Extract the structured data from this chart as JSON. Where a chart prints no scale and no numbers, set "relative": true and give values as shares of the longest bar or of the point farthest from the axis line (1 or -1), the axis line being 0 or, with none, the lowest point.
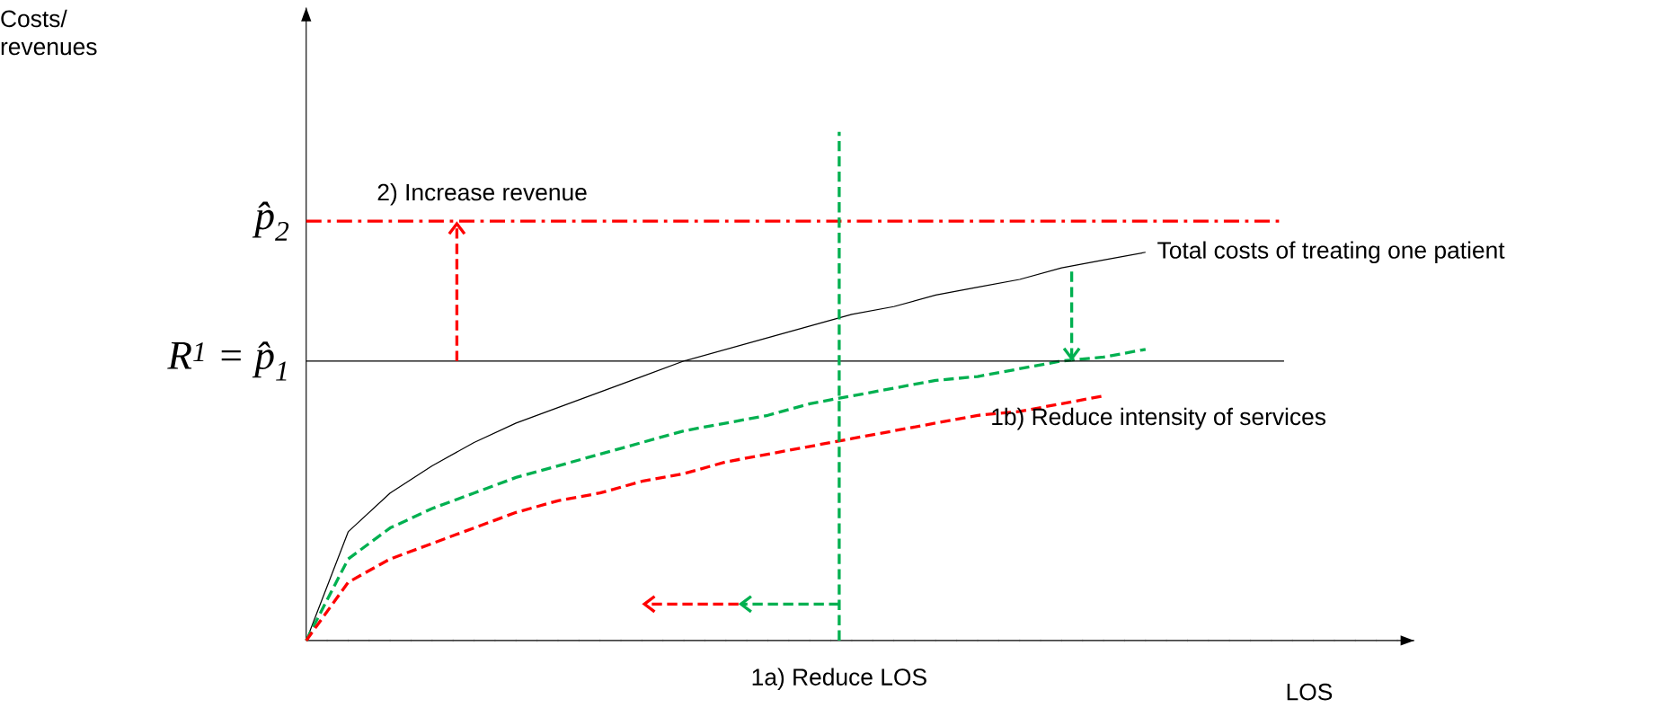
{
  "chart_data": {
    "type": "line",
    "relative": true,
    "categories": [
      null,
      null,
      null,
      null,
      null,
      null,
      null,
      null,
      null,
      null,
      null,
      null,
      null,
      null,
      null,
      null,
      null,
      null,
      null,
      null,
      null
    ],
    "series": [
      {
        "name": "Total costs of treating one patient",
        "color": "#000000",
        "line_style": "solid",
        "values": [
          0,
          0.28,
          0.38,
          0.45,
          0.51,
          0.56,
          0.6,
          0.64,
          0.68,
          0.72,
          0.75,
          0.78,
          0.81,
          0.84,
          0.86,
          0.89,
          0.91,
          0.93,
          0.96,
          0.98,
          1
        ]
      },
      {
        "color": "#00b050",
        "line_style": "dashed",
        "values": [
          0,
          0.21,
          0.29,
          0.34,
          0.38,
          0.42,
          0.45,
          0.48,
          0.51,
          0.54,
          0.56,
          0.58,
          0.61,
          0.63,
          0.65,
          0.67,
          0.68,
          0.7,
          0.72,
          0.73,
          0.75
        ]
      },
      {
        "name": "1b) Reduce intensity of services",
        "color": "#ff0000",
        "line_style": "dashed",
        "values": [
          0,
          0.15,
          0.21,
          0.25,
          0.29,
          0.33,
          0.36,
          0.38,
          0.41,
          0.43,
          0.46,
          0.48,
          0.5,
          0.52,
          0.54,
          0.56,
          0.58,
          0.59,
          0.61,
          0.63,
          null
        ]
      }
    ],
    "ref_lines": [
      {
        "axis": "y",
        "value": 1.08,
        "label": "p̂$_{2}$",
        "color": "#ff0000",
        "line_style": "dashdot"
      },
      {
        "axis": "y",
        "value": 0.72,
        "label": "R$^{1}$ = p̂$_{1}$",
        "color": "#000000",
        "line_style": "solid"
      }
    ],
    "annotations": [
      "2) Increase revenue",
      "1a) Reduce LOS",
      "LOS",
      "Costs/ revenues"
    ]
  }
}
